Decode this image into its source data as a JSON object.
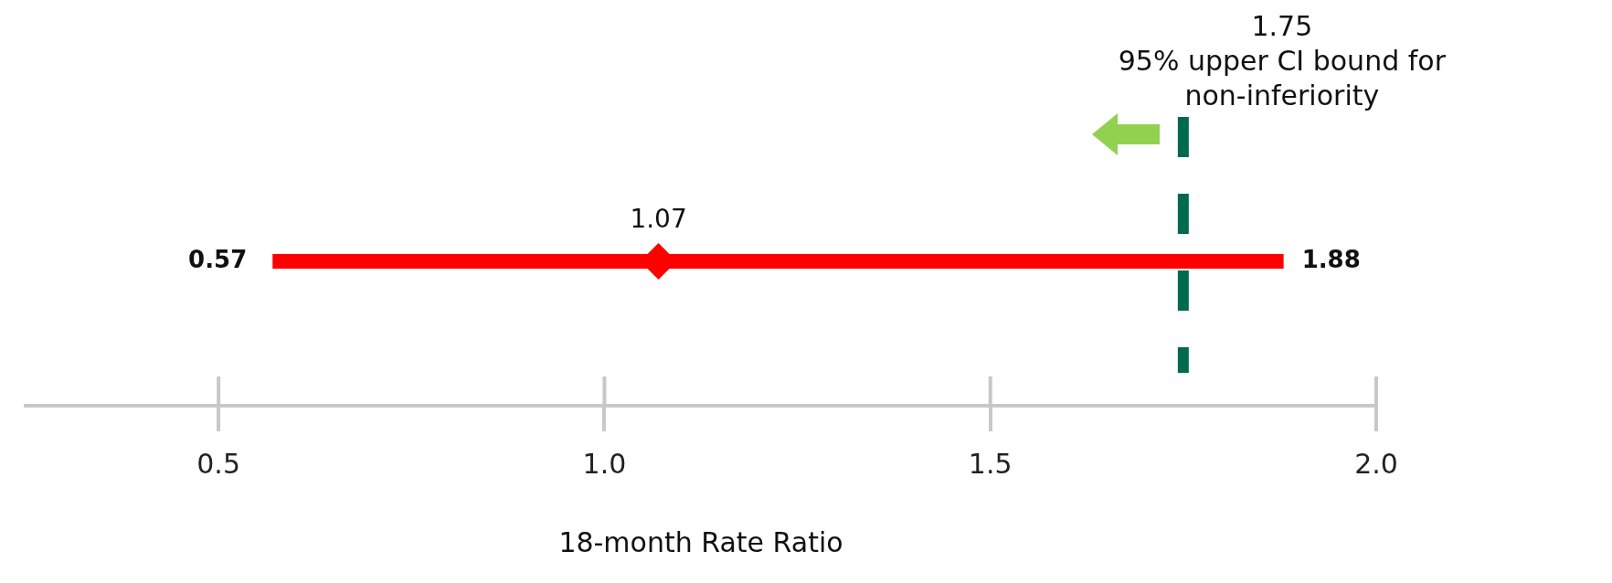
{
  "chart_data": {
    "type": "scatter",
    "orientation": "horizontal",
    "categories": [
      null
    ],
    "series": [
      {
        "color": "#ff0000",
        "values": [
          1.07
        ],
        "errors": [
          [
            0.57,
            1.88
          ]
        ],
        "value_labels": [
          "1.07"
        ]
      }
    ],
    "marker": "diamond",
    "xlabel": "18-month Rate Ratio",
    "xlim": [
      0.25,
      2.0
    ],
    "xticks": [
      0.5,
      {
        "value": 1.0,
        "label": "1.0"
      },
      1.5,
      {
        "value": 2.0,
        "label": "2.0"
      }
    ],
    "tick_labels": "x",
    "grid": false,
    "legend": false,
    "ref_lines": [
      {
        "axis": "x",
        "value": 1.75,
        "label": "1.75\n95% upper CI bound for\nnon-inferiority",
        "color": "#006a4e",
        "line_style": "dashed"
      }
    ],
    "annotations": [
      {
        "text": "0.57",
        "x": 0.57
      },
      {
        "text": "1.88",
        "x": 1.88
      }
    ]
  }
}
